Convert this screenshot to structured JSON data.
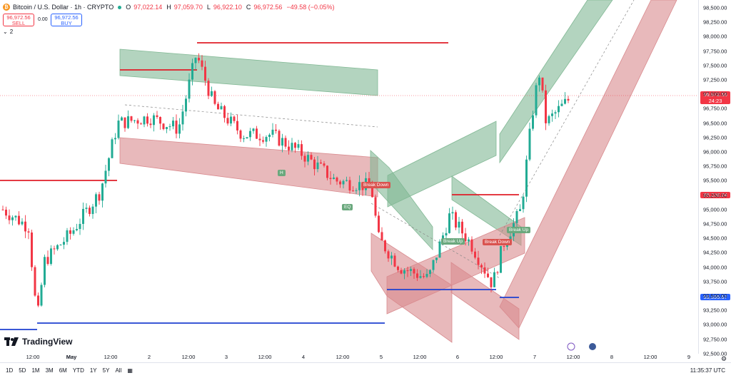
{
  "header": {
    "symbol": "Bitcoin / U.S. Dollar · 1h · CRYPTO",
    "ohlc": [
      {
        "label": "O",
        "value": "97,022.14"
      },
      {
        "label": "H",
        "value": "97,059.70"
      },
      {
        "label": "L",
        "value": "96,922.10"
      },
      {
        "label": "C",
        "value": "96,972.56"
      }
    ],
    "change": "−49.58 (−0.05%)",
    "sell_price": "96,972.56",
    "sell_label": "SELL",
    "buy_price": "96,972.56",
    "buy_label": "BUY",
    "spread": "0.00",
    "indicator_count": "2"
  },
  "price_axis": {
    "labels": [
      "98,500.00",
      "98,250.00",
      "98,000.00",
      "97,750.00",
      "97,500.00",
      "97,250.00",
      "97,000.00",
      "96,750.00",
      "96,500.00",
      "96,250.00",
      "96,000.00",
      "95,750.00",
      "95,500.00",
      "95,250.00",
      "95,000.00",
      "94,750.00",
      "94,500.00",
      "94,250.00",
      "94,000.00",
      "93,750.00",
      "93,500.00",
      "93,250.00",
      "93,000.00",
      "92,750.00",
      "92,500.00"
    ],
    "current_price": "96,972.56",
    "countdown": "24:23",
    "red_level_tag": "95,206.04",
    "blue_level_tag": "93,395.67"
  },
  "time_axis": {
    "labels": [
      "12:00",
      "May",
      "12:00",
      "2",
      "12:00",
      "3",
      "12:00",
      "4",
      "12:00",
      "5",
      "12:00",
      "6",
      "12:00",
      "7",
      "12:00",
      "8",
      "12:00",
      "9"
    ]
  },
  "chart_labels": {
    "h": "H",
    "eq": "EQ",
    "break_down_1": "Break Down",
    "break_up_1": "Break Up",
    "break_down_2": "Break Down",
    "break_up_2": "Break Up"
  },
  "colors": {
    "up": "#22ab94",
    "down": "#f23645",
    "green_band": "#81b894",
    "red_band": "#d98a8e",
    "support": "#1e40d0",
    "resistance": "#e01e28"
  },
  "bottom_bar": {
    "ranges": [
      "1D",
      "5D",
      "1M",
      "3M",
      "6M",
      "YTD",
      "1Y",
      "5Y",
      "All"
    ],
    "clock": "11:35:37 UTC"
  },
  "logo": {
    "text": "TradingView"
  }
}
